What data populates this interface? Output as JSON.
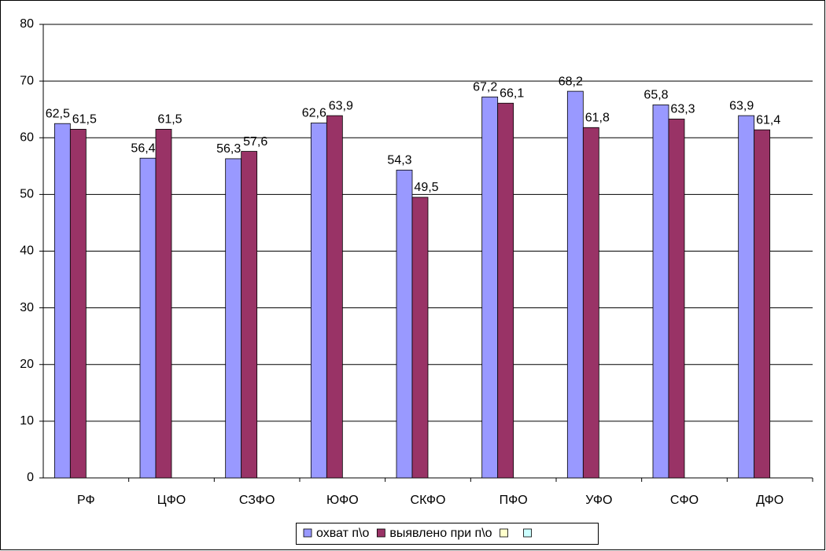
{
  "chart_data": {
    "type": "bar",
    "categories": [
      "РФ",
      "ЦФО",
      "СЗФО",
      "ЮФО",
      "СКФО",
      "ПФО",
      "УФО",
      "СФО",
      "ДФО"
    ],
    "series": [
      {
        "name": "охват п\\о",
        "color": "#9999ff",
        "values": [
          62.5,
          56.4,
          56.3,
          62.6,
          54.3,
          67.2,
          68.2,
          65.8,
          63.9
        ],
        "value_labels": [
          "62,5",
          "56,4",
          "56,3",
          "62,6",
          "54,3",
          "67,2",
          "68,2",
          "65,8",
          "63,9"
        ]
      },
      {
        "name": "выявлено при п\\о",
        "color": "#993366",
        "values": [
          61.5,
          61.5,
          57.6,
          63.9,
          49.5,
          66.1,
          61.8,
          63.3,
          61.4
        ],
        "value_labels": [
          "61,5",
          "61,5",
          "57,6",
          "63,9",
          "49,5",
          "66,1",
          "61,8",
          "63,3",
          "61,4"
        ]
      },
      {
        "color": "#ffffcc",
        "values": [
          null,
          null,
          null,
          null,
          null,
          null,
          null,
          null,
          null
        ]
      },
      {
        "color": "#ccffff",
        "values": [
          null,
          null,
          null,
          null,
          null,
          null,
          null,
          null,
          null
        ]
      }
    ],
    "ylim": [
      0,
      80
    ],
    "yticks": [
      0,
      10,
      20,
      30,
      40,
      50,
      60,
      70,
      80
    ],
    "grid": true,
    "legend": "bottom"
  }
}
